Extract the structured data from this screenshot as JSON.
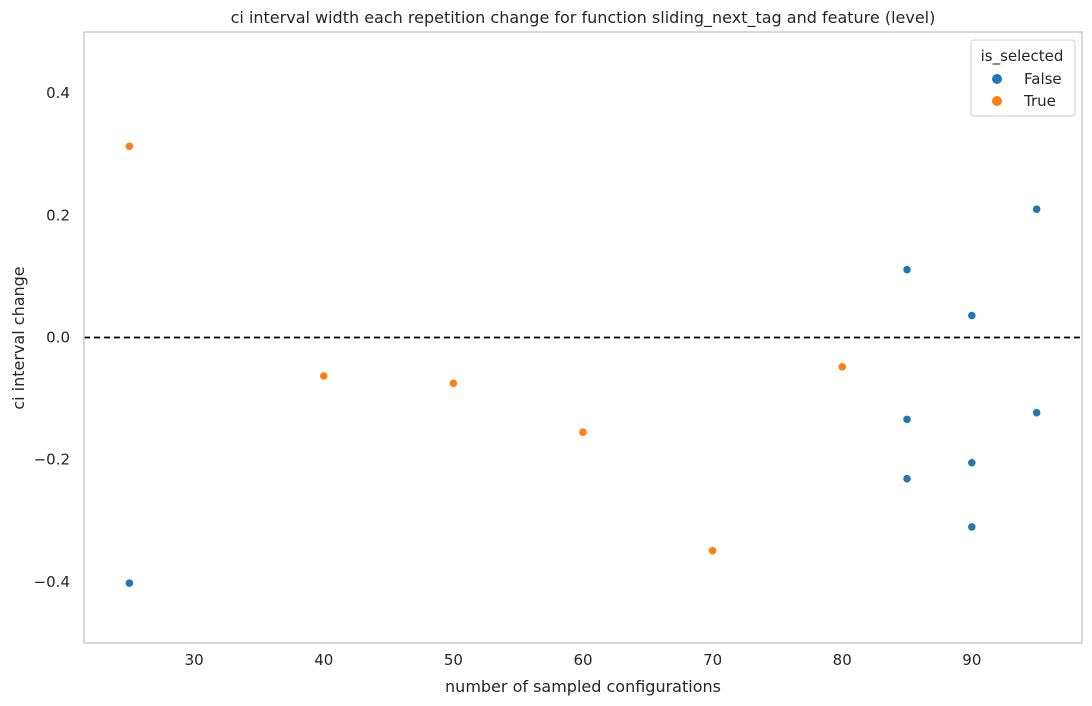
{
  "chart_data": {
    "type": "scatter",
    "title": "ci interval width each repetition change for function sliding_next_tag and feature (level)",
    "xlabel": "number of sampled configurations",
    "ylabel": "ci interval change",
    "xlim": [
      21.5,
      98.5
    ],
    "ylim": [
      -0.5,
      0.5
    ],
    "xticks": [
      30,
      40,
      50,
      60,
      70,
      80,
      90
    ],
    "yticks": [
      -0.4,
      -0.2,
      0.0,
      0.2,
      0.4
    ],
    "ytick_labels": [
      "−0.4",
      "−0.2",
      "0.0",
      "0.2",
      "0.4"
    ],
    "grid": false,
    "reference_line": {
      "y": 0.0,
      "style": "dashed",
      "color": "#000000"
    },
    "legend": {
      "title": "is_selected",
      "placement": "top-right",
      "entries": [
        "False",
        "True"
      ]
    },
    "series": [
      {
        "name": "False",
        "color": "#1f77b4",
        "points": [
          {
            "x": 25,
            "y": -0.402
          },
          {
            "x": 85,
            "y": 0.111
          },
          {
            "x": 85,
            "y": -0.134
          },
          {
            "x": 85,
            "y": -0.231
          },
          {
            "x": 90,
            "y": 0.036
          },
          {
            "x": 90,
            "y": -0.205
          },
          {
            "x": 90,
            "y": -0.31
          },
          {
            "x": 95,
            "y": 0.21
          },
          {
            "x": 95,
            "y": -0.123
          }
        ]
      },
      {
        "name": "True",
        "color": "#ff7f0e",
        "points": [
          {
            "x": 25,
            "y": 0.313
          },
          {
            "x": 40,
            "y": -0.063
          },
          {
            "x": 50,
            "y": -0.075
          },
          {
            "x": 60,
            "y": -0.155
          },
          {
            "x": 70,
            "y": -0.349
          },
          {
            "x": 80,
            "y": -0.048
          }
        ]
      }
    ]
  }
}
